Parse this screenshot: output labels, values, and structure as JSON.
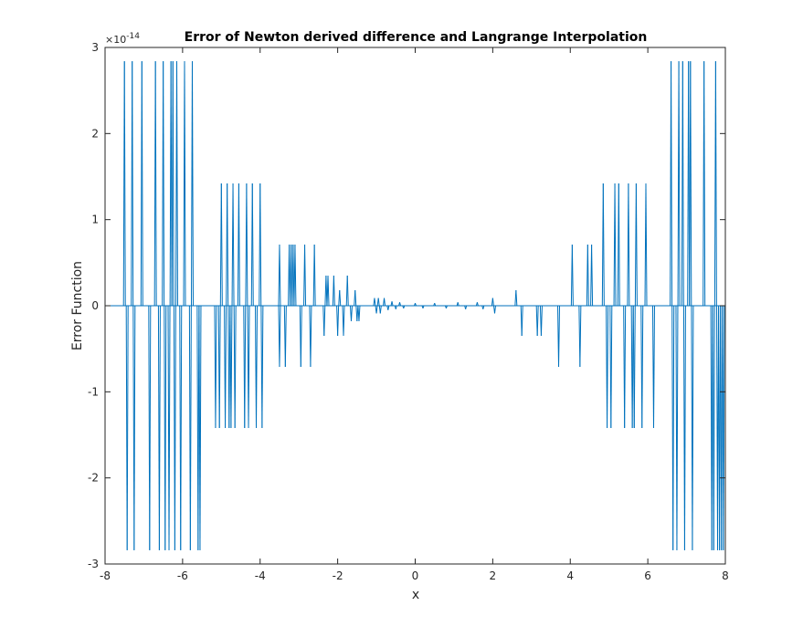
{
  "chart_data": {
    "type": "line",
    "title": "Error of Newton derived difference and Langrange Interpolation",
    "xlabel": "x",
    "ylabel": "Error Function",
    "xlim": [
      -8,
      8
    ],
    "ylim": [
      -3,
      3
    ],
    "y_exponent_base": "×10",
    "y_exponent_power": "-14",
    "xticks": [
      -8,
      -6,
      -4,
      -2,
      0,
      2,
      4,
      6,
      8
    ],
    "xtick_labels": [
      "-8",
      "-6",
      "-4",
      "-2",
      "0",
      "2",
      "4",
      "6",
      "8"
    ],
    "yticks": [
      -3,
      -2,
      -1,
      0,
      1,
      2,
      3
    ],
    "ytick_labels": [
      "-3",
      "-2",
      "-1",
      "0",
      "1",
      "2",
      "3"
    ],
    "grid": false,
    "box": true,
    "series_color": "#0072BD",
    "axis_color": "#262626",
    "series": [
      {
        "spikes": [
          [
            -7.5,
            2.84
          ],
          [
            -7.43,
            -2.84
          ],
          [
            -7.3,
            2.84
          ],
          [
            -7.25,
            -2.84
          ],
          [
            -7.05,
            2.84
          ],
          [
            -6.85,
            -2.84
          ],
          [
            -6.7,
            2.84
          ],
          [
            -6.6,
            -2.84
          ],
          [
            -6.5,
            2.84
          ],
          [
            -6.45,
            -2.84
          ],
          [
            -6.35,
            -2.84
          ],
          [
            -6.3,
            2.84
          ],
          [
            -6.25,
            2.84
          ],
          [
            -6.2,
            -2.84
          ],
          [
            -6.15,
            2.84
          ],
          [
            -6.05,
            -2.84
          ],
          [
            -5.95,
            2.84
          ],
          [
            -5.8,
            -2.84
          ],
          [
            -5.75,
            2.84
          ],
          [
            -5.6,
            -2.84
          ],
          [
            -5.55,
            -2.84
          ],
          [
            -5.15,
            -1.42
          ],
          [
            -5.05,
            -1.42
          ],
          [
            -5.0,
            1.42
          ],
          [
            -4.9,
            -1.42
          ],
          [
            -4.85,
            1.42
          ],
          [
            -4.8,
            -1.42
          ],
          [
            -4.75,
            -1.42
          ],
          [
            -4.7,
            1.42
          ],
          [
            -4.65,
            -1.42
          ],
          [
            -4.55,
            1.42
          ],
          [
            -4.4,
            -1.42
          ],
          [
            -4.35,
            1.42
          ],
          [
            -4.3,
            -1.42
          ],
          [
            -4.2,
            1.42
          ],
          [
            -4.1,
            -1.42
          ],
          [
            -4.0,
            1.42
          ],
          [
            -3.95,
            -1.42
          ],
          [
            -3.5,
            0.71
          ],
          [
            -3.5,
            -0.71
          ],
          [
            -3.35,
            -0.71
          ],
          [
            -3.25,
            0.71
          ],
          [
            -3.2,
            0.71
          ],
          [
            -3.15,
            0.71
          ],
          [
            -3.1,
            0.71
          ],
          [
            -2.95,
            -0.71
          ],
          [
            -2.85,
            0.71
          ],
          [
            -2.7,
            -0.71
          ],
          [
            -2.6,
            0.71
          ],
          [
            -2.35,
            -0.35
          ],
          [
            -2.3,
            0.35
          ],
          [
            -2.25,
            0.35
          ],
          [
            -2.1,
            0.35
          ],
          [
            -2.0,
            -0.35
          ],
          [
            -1.95,
            0.18
          ],
          [
            -1.85,
            -0.35
          ],
          [
            -1.75,
            0.35
          ],
          [
            -1.65,
            -0.18
          ],
          [
            -1.55,
            0.18
          ],
          [
            -1.5,
            -0.18
          ],
          [
            -1.45,
            -0.18
          ],
          [
            -1.05,
            0.09
          ],
          [
            -1.0,
            -0.09
          ],
          [
            -0.95,
            0.09
          ],
          [
            -0.9,
            -0.09
          ],
          [
            -0.8,
            0.09
          ],
          [
            -0.7,
            -0.05
          ],
          [
            -0.6,
            0.05
          ],
          [
            -0.5,
            -0.04
          ],
          [
            -0.4,
            0.04
          ],
          [
            -0.3,
            -0.03
          ],
          [
            0.0,
            0.03
          ],
          [
            0.2,
            -0.03
          ],
          [
            0.5,
            0.03
          ],
          [
            0.8,
            -0.03
          ],
          [
            1.1,
            0.04
          ],
          [
            1.3,
            -0.04
          ],
          [
            1.6,
            0.04
          ],
          [
            1.75,
            -0.04
          ],
          [
            2.0,
            0.09
          ],
          [
            2.05,
            -0.09
          ],
          [
            2.6,
            0.18
          ],
          [
            2.75,
            -0.35
          ],
          [
            3.15,
            -0.35
          ],
          [
            3.25,
            -0.35
          ],
          [
            3.7,
            -0.71
          ],
          [
            4.05,
            0.71
          ],
          [
            4.25,
            -0.71
          ],
          [
            4.45,
            0.71
          ],
          [
            4.55,
            0.71
          ],
          [
            4.85,
            1.42
          ],
          [
            4.95,
            -1.42
          ],
          [
            5.05,
            -1.42
          ],
          [
            5.15,
            1.42
          ],
          [
            5.25,
            1.42
          ],
          [
            5.4,
            -1.42
          ],
          [
            5.5,
            1.42
          ],
          [
            5.6,
            -1.42
          ],
          [
            5.65,
            -1.42
          ],
          [
            5.7,
            1.42
          ],
          [
            5.85,
            -1.42
          ],
          [
            5.95,
            1.42
          ],
          [
            6.15,
            -1.42
          ],
          [
            6.6,
            2.84
          ],
          [
            6.65,
            -2.84
          ],
          [
            6.75,
            -2.84
          ],
          [
            6.8,
            2.84
          ],
          [
            6.9,
            2.84
          ],
          [
            6.95,
            -2.84
          ],
          [
            7.05,
            2.84
          ],
          [
            7.1,
            2.84
          ],
          [
            7.15,
            -2.84
          ],
          [
            7.45,
            2.84
          ],
          [
            7.65,
            -2.84
          ],
          [
            7.7,
            -2.84
          ],
          [
            7.75,
            2.84
          ],
          [
            7.8,
            -2.84
          ],
          [
            7.85,
            -2.84
          ],
          [
            7.9,
            -2.84
          ],
          [
            7.95,
            -2.84
          ]
        ]
      }
    ]
  }
}
